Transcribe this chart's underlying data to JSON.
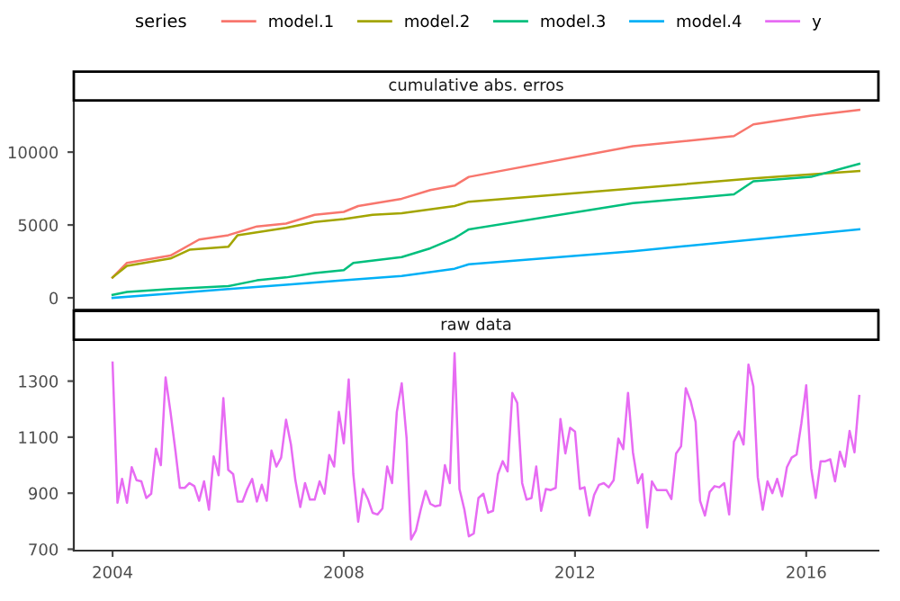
{
  "chart_data": [
    {
      "type": "line",
      "title": "cumulative abs. erros",
      "legend": "top",
      "legend_title": "series",
      "tick_labels": "y",
      "xlim": [
        "2003-05",
        "2017-04"
      ],
      "xticks": [
        "2004",
        "2008",
        "2012",
        "2016"
      ],
      "ylim": [
        -800,
        13400
      ],
      "yticks": [
        0,
        5000,
        10000
      ],
      "series": [
        {
          "name": "model.1",
          "color": "#f8766d",
          "x": [
            "2004-01",
            "2004-04",
            "2005-01",
            "2005-07",
            "2006-01",
            "2006-07",
            "2007-01",
            "2007-07",
            "2008-01",
            "2008-04",
            "2009-01",
            "2009-07",
            "2009-12",
            "2010-03",
            "2013-01",
            "2014-10",
            "2015-02",
            "2016-02",
            "2016-12"
          ],
          "values": [
            1400,
            2400,
            2900,
            4000,
            4300,
            4900,
            5100,
            5700,
            5900,
            6300,
            6800,
            7400,
            7700,
            8300,
            10400,
            11100,
            11900,
            12500,
            12900
          ]
        },
        {
          "name": "model.2",
          "color": "#a3a500",
          "x": [
            "2004-01",
            "2004-04",
            "2005-01",
            "2005-05",
            "2006-01",
            "2006-03",
            "2007-01",
            "2007-07",
            "2008-01",
            "2008-07",
            "2009-01",
            "2009-12",
            "2010-03",
            "2013-01",
            "2015-02",
            "2016-12"
          ],
          "values": [
            1400,
            2200,
            2700,
            3300,
            3500,
            4300,
            4800,
            5200,
            5400,
            5700,
            5800,
            6300,
            6600,
            7500,
            8200,
            8700
          ]
        },
        {
          "name": "model.3",
          "color": "#00bf7d",
          "x": [
            "2004-01",
            "2004-04",
            "2005-01",
            "2006-01",
            "2006-07",
            "2007-01",
            "2007-07",
            "2008-01",
            "2008-03",
            "2009-01",
            "2009-07",
            "2009-12",
            "2010-03",
            "2013-01",
            "2014-10",
            "2015-02",
            "2016-02",
            "2016-12"
          ],
          "values": [
            200,
            400,
            600,
            800,
            1200,
            1400,
            1700,
            1900,
            2400,
            2800,
            3400,
            4100,
            4700,
            6500,
            7100,
            8000,
            8300,
            9200
          ]
        },
        {
          "name": "model.4",
          "color": "#00b0f6",
          "x": [
            "2004-01",
            "2005-01",
            "2006-01",
            "2007-01",
            "2008-01",
            "2009-01",
            "2009-12",
            "2010-03",
            "2013-01",
            "2015-02",
            "2016-12"
          ],
          "values": [
            0,
            300,
            600,
            900,
            1200,
            1500,
            2000,
            2300,
            3200,
            4000,
            4700
          ]
        }
      ]
    },
    {
      "type": "line",
      "title": "raw data",
      "xlim": [
        "2003-05",
        "2017-04"
      ],
      "xticks": [
        "2004",
        "2008",
        "2012",
        "2016"
      ],
      "ylim": [
        695,
        1440
      ],
      "yticks": [
        700,
        900,
        1100,
        1300
      ],
      "series": [
        {
          "name": "y",
          "color": "#e76bf3",
          "x": [
            "2004-01",
            "2004-02",
            "2004-03",
            "2004-04",
            "2004-05",
            "2004-06",
            "2004-07",
            "2004-08",
            "2004-09",
            "2004-10",
            "2004-11",
            "2004-12",
            "2005-01",
            "2005-02",
            "2005-03",
            "2005-04",
            "2005-05",
            "2005-06",
            "2005-07",
            "2005-08",
            "2005-09",
            "2005-10",
            "2005-11",
            "2005-12",
            "2006-01",
            "2006-02",
            "2006-03",
            "2006-04",
            "2006-05",
            "2006-06",
            "2006-07",
            "2006-08",
            "2006-09",
            "2006-10",
            "2006-11",
            "2006-12",
            "2007-01",
            "2007-02",
            "2007-03",
            "2007-04",
            "2007-05",
            "2007-06",
            "2007-07",
            "2007-08",
            "2007-09",
            "2007-10",
            "2007-11",
            "2007-12",
            "2008-01",
            "2008-02",
            "2008-03",
            "2008-04",
            "2008-05",
            "2008-06",
            "2008-07",
            "2008-08",
            "2008-09",
            "2008-10",
            "2008-11",
            "2008-12",
            "2009-01",
            "2009-02",
            "2009-03",
            "2009-04",
            "2009-05",
            "2009-06",
            "2009-07",
            "2009-08",
            "2009-09",
            "2009-10",
            "2009-11",
            "2009-12",
            "2010-01",
            "2010-02",
            "2010-03",
            "2010-04",
            "2010-05",
            "2010-06",
            "2010-07",
            "2010-08",
            "2010-09",
            "2010-10",
            "2010-11",
            "2010-12",
            "2011-01",
            "2011-02",
            "2011-03",
            "2011-04",
            "2011-05",
            "2011-06",
            "2011-07",
            "2011-08",
            "2011-09",
            "2011-10",
            "2011-11",
            "2011-12",
            "2012-01",
            "2012-02",
            "2012-03",
            "2012-04",
            "2012-05",
            "2012-06",
            "2012-07",
            "2012-08",
            "2012-09",
            "2012-10",
            "2012-11",
            "2012-12",
            "2013-01",
            "2013-02",
            "2013-03",
            "2013-04",
            "2013-05",
            "2013-06",
            "2013-07",
            "2013-08",
            "2013-09",
            "2013-10",
            "2013-11",
            "2013-12",
            "2014-01",
            "2014-02",
            "2014-03",
            "2014-04",
            "2014-05",
            "2014-06",
            "2014-07",
            "2014-08",
            "2014-09",
            "2014-10",
            "2014-11",
            "2014-12",
            "2015-01",
            "2015-02",
            "2015-03",
            "2015-04",
            "2015-05",
            "2015-06",
            "2015-07",
            "2015-08",
            "2015-09",
            "2015-10",
            "2015-11",
            "2015-12",
            "2016-01",
            "2016-02",
            "2016-03",
            "2016-04",
            "2016-05",
            "2016-06",
            "2016-07",
            "2016-08",
            "2016-09",
            "2016-10",
            "2016-11",
            "2016-12"
          ],
          "values": [
            1366,
            866,
            951,
            866,
            993,
            946,
            942,
            883,
            898,
            1059,
            1000,
            1313,
            1190,
            1052,
            919,
            919,
            936,
            925,
            873,
            942,
            841,
            1031,
            964,
            1239,
            983,
            968,
            870,
            870,
            915,
            951,
            870,
            930,
            873,
            1052,
            995,
            1027,
            1162,
            1074,
            946,
            851,
            936,
            877,
            877,
            942,
            898,
            1036,
            995,
            1190,
            1078,
            1306,
            968,
            798,
            915,
            879,
            830,
            824,
            845,
            995,
            936,
            1190,
            1292,
            1095,
            735,
            767,
            841,
            908,
            862,
            853,
            857,
            1000,
            936,
            1400,
            915,
            841,
            746,
            756,
            883,
            898,
            830,
            837,
            968,
            1014,
            978,
            1258,
            1222,
            936,
            877,
            883,
            995,
            837,
            915,
            911,
            919,
            1165,
            1042,
            1133,
            1120,
            915,
            921,
            820,
            894,
            930,
            936,
            921,
            946,
            1095,
            1057,
            1258,
            1046,
            936,
            968,
            777,
            942,
            911,
            911,
            911,
            879,
            1042,
            1067,
            1275,
            1228,
            1154,
            873,
            820,
            904,
            925,
            921,
            936,
            824,
            1084,
            1120,
            1074,
            1359,
            1281,
            957,
            841,
            942,
            900,
            951,
            889,
            993,
            1027,
            1038,
            1148,
            1285,
            989,
            883,
            1014,
            1014,
            1021,
            942,
            1048,
            995,
            1122,
            1046,
            1247
          ]
        }
      ]
    }
  ]
}
